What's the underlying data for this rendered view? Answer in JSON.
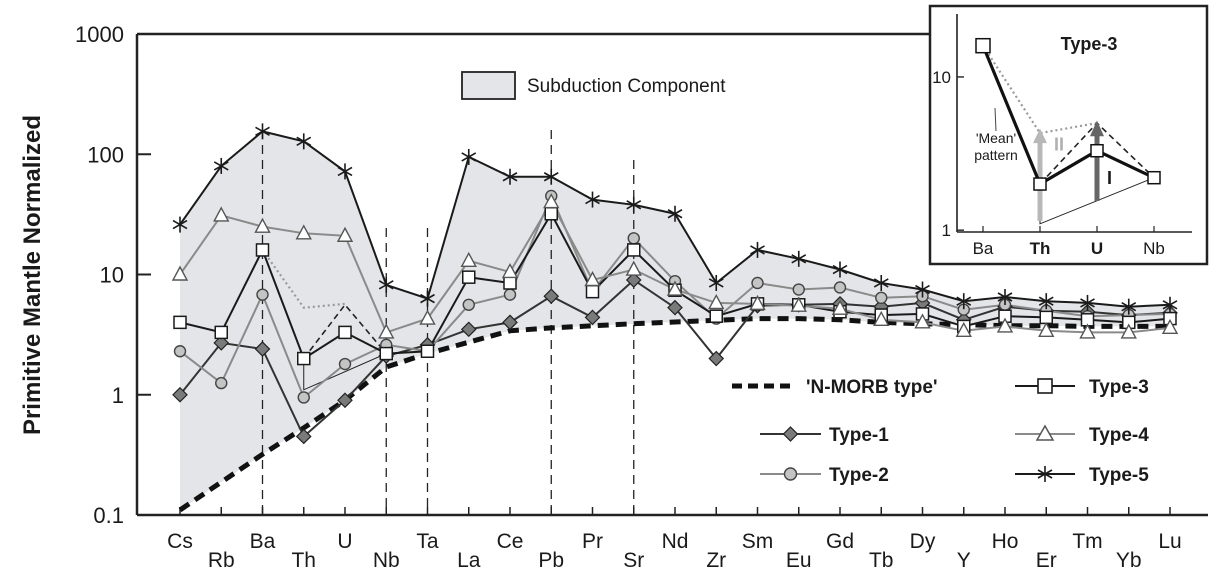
{
  "chart_data": {
    "type": "line",
    "yscale": "log",
    "ylabel": "Primitive Mantle Normalized",
    "ylim": [
      0.1,
      1000
    ],
    "yticks": [
      "1000",
      "100",
      "10",
      "1",
      "0.1"
    ],
    "elements": [
      "Cs",
      "Rb",
      "Ba",
      "Th",
      "U",
      "Nb",
      "Ta",
      "La",
      "Ce",
      "Pb",
      "Pr",
      "Sr",
      "Nd",
      "Zr",
      "Sm",
      "Eu",
      "Gd",
      "Tb",
      "Dy",
      "Y",
      "Ho",
      "Er",
      "Tm",
      "Yb",
      "Lu"
    ],
    "dashed_markers": [
      "Ba",
      "Nb",
      "Ta",
      "Pb",
      "Sr"
    ],
    "series": [
      {
        "name": "Type-1",
        "style": "diamond",
        "color": "#333333",
        "values": [
          1.0,
          2.7,
          2.4,
          0.45,
          0.9,
          2.1,
          2.6,
          3.5,
          4.0,
          6.6,
          4.4,
          9.0,
          5.3,
          2.0,
          5.5,
          5.6,
          5.7,
          5.4,
          5.8,
          4.2,
          5.4,
          5.0,
          4.9,
          4.6,
          4.8
        ]
      },
      {
        "name": "Type-2",
        "style": "circle",
        "color": "#8a8a8a",
        "values": [
          2.3,
          1.25,
          6.8,
          0.95,
          1.8,
          2.6,
          2.3,
          5.6,
          6.8,
          45,
          7.2,
          20,
          8.8,
          4.3,
          8.5,
          7.5,
          7.8,
          6.4,
          6.6,
          5.1,
          5.6,
          5.0,
          4.5,
          4.6,
          4.7
        ]
      },
      {
        "name": "Type-3",
        "style": "square",
        "color": "#1a1a1a",
        "values": [
          4.0,
          3.3,
          16,
          2.0,
          3.3,
          2.2,
          2.3,
          9.5,
          8.5,
          32,
          7.2,
          16,
          7.4,
          4.5,
          5.7,
          5.6,
          4.9,
          4.6,
          4.7,
          3.7,
          4.5,
          4.4,
          4.2,
          4.0,
          4.3
        ]
      },
      {
        "name": "Type-4",
        "style": "triangle",
        "color": "#8a8a8a",
        "values": [
          10,
          31,
          25,
          22,
          21,
          3.3,
          4.3,
          13,
          10.5,
          40,
          9,
          11,
          7.5,
          5.8,
          5.7,
          5.5,
          5.2,
          4.2,
          4.0,
          3.4,
          3.7,
          3.4,
          3.3,
          3.3,
          3.6
        ]
      },
      {
        "name": "Type-5",
        "style": "star",
        "color": "#1a1a1a",
        "values": [
          26,
          80,
          155,
          128,
          72,
          8.2,
          6.3,
          95,
          65,
          65,
          42,
          38,
          32,
          8.5,
          16,
          13.5,
          11,
          8.5,
          7.5,
          6.0,
          6.5,
          6.0,
          5.8,
          5.4,
          5.6
        ]
      }
    ],
    "nmorb": {
      "name": "'N-MORB type'",
      "style": "dashed-thick",
      "values": [
        0.11,
        null,
        0.32,
        0.53,
        0.9,
        1.7,
        2.2,
        null,
        3.4,
        3.6,
        null,
        3.9,
        null,
        null,
        4.3,
        4.3,
        4.2,
        4.0,
        3.9,
        null,
        3.75,
        3.75,
        3.7,
        3.7,
        3.7
      ]
    },
    "mean_dotted": {
      "elements": [
        "Ba",
        "Th",
        "U"
      ],
      "values": [
        16,
        5.3,
        5.7
      ]
    },
    "legend": {
      "subduction": "Subduction Component",
      "order": [
        "'N-MORB type'",
        "Type-3",
        "Type-1",
        "Type-4",
        "Type-2",
        "Type-5"
      ]
    },
    "inset": {
      "title": "Type-3",
      "elements": [
        "Ba",
        "Th",
        "U",
        "Nb"
      ],
      "bold_elements": [
        "Th",
        "U"
      ],
      "yticks": [
        "10",
        "1"
      ],
      "ylim": [
        0.8,
        25
      ],
      "square_values": [
        16,
        2.0,
        3.3,
        2.2
      ],
      "dashed_values": [
        16,
        2.0,
        5.0,
        2.2
      ],
      "dotted_values": [
        16,
        4.3,
        5.0,
        null
      ],
      "thin_base": 1.1,
      "arrow_I": "I",
      "arrow_II": "II",
      "note": [
        "'Mean'",
        "pattern"
      ]
    },
    "grid": false
  }
}
